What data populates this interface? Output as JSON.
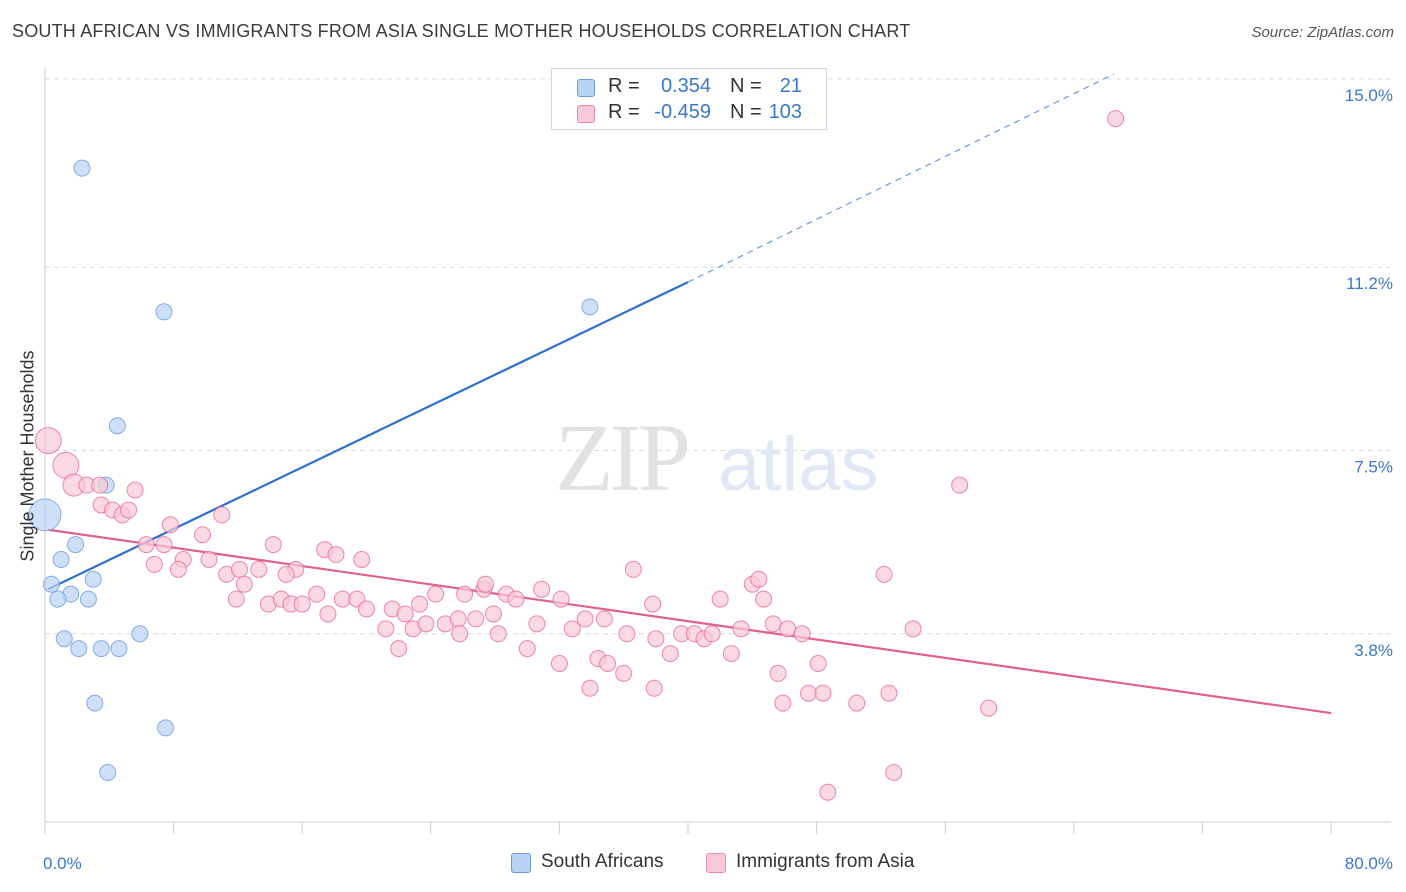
{
  "title": "SOUTH AFRICAN VS IMMIGRANTS FROM ASIA SINGLE MOTHER HOUSEHOLDS CORRELATION CHART",
  "source": "Source: ZipAtlas.com",
  "watermark": {
    "zip": "ZIP",
    "atlas": "atlas"
  },
  "legend": {
    "r_label": "R =",
    "n_label": "N =",
    "rows": [
      {
        "r": "0.354",
        "n": "21",
        "color": "#a9c8ef",
        "border": "#6a9be0"
      },
      {
        "r": "-0.459",
        "n": "103",
        "color": "#f8c0d0",
        "border": "#eb8ba8"
      }
    ]
  },
  "bottom_legend": [
    {
      "label": "South Africans",
      "color": "#b9d3f3",
      "border": "#6a9be0"
    },
    {
      "label": "Immigrants from Asia",
      "color": "#f8c9d6",
      "border": "#eb8ba8"
    }
  ],
  "chart_data": {
    "type": "scatter",
    "xlabel": "",
    "ylabel": "Single Mother Households",
    "xlim": [
      0,
      80
    ],
    "ylim": [
      0,
      15.0
    ],
    "x_tick_labels": [
      "0.0%",
      "80.0%"
    ],
    "y_ticks": [
      3.8,
      7.5,
      11.2,
      15.0
    ],
    "y_tick_labels": [
      "3.8%",
      "7.5%",
      "11.2%",
      "15.0%"
    ],
    "grid": true,
    "legend_position": "top-center",
    "series": [
      {
        "name": "South Africans",
        "color": "#6a9be0",
        "fill": "#b9d3f3",
        "points": [
          {
            "x": 2.3,
            "y": 13.2
          },
          {
            "x": 7.4,
            "y": 10.3
          },
          {
            "x": 4.5,
            "y": 8.0
          },
          {
            "x": 3.8,
            "y": 6.8
          },
          {
            "x": 0.0,
            "y": 6.2
          },
          {
            "x": 1.9,
            "y": 5.6
          },
          {
            "x": 1.0,
            "y": 5.3
          },
          {
            "x": 3.0,
            "y": 4.9
          },
          {
            "x": 0.4,
            "y": 4.8
          },
          {
            "x": 1.6,
            "y": 4.6
          },
          {
            "x": 0.8,
            "y": 4.5
          },
          {
            "x": 2.7,
            "y": 4.5
          },
          {
            "x": 1.2,
            "y": 3.7
          },
          {
            "x": 5.9,
            "y": 3.8
          },
          {
            "x": 2.1,
            "y": 3.5
          },
          {
            "x": 3.5,
            "y": 3.5
          },
          {
            "x": 4.6,
            "y": 3.5
          },
          {
            "x": 3.1,
            "y": 2.4
          },
          {
            "x": 7.5,
            "y": 1.9
          },
          {
            "x": 3.9,
            "y": 1.0
          },
          {
            "x": 33.9,
            "y": 10.4
          }
        ],
        "trend": {
          "x1": 0.2,
          "y1": 4.7,
          "x2": 40.0,
          "y2": 10.9,
          "ext_x2": 66.5,
          "ext_y2": 15.1
        }
      },
      {
        "name": "Immigrants from Asia",
        "color": "#e86a97",
        "fill": "#f8c9d6",
        "points": [
          {
            "x": 0.2,
            "y": 7.7
          },
          {
            "x": 1.3,
            "y": 7.2
          },
          {
            "x": 1.8,
            "y": 6.8
          },
          {
            "x": 2.6,
            "y": 6.8
          },
          {
            "x": 3.4,
            "y": 6.8
          },
          {
            "x": 3.5,
            "y": 6.4
          },
          {
            "x": 5.6,
            "y": 6.7
          },
          {
            "x": 4.2,
            "y": 6.3
          },
          {
            "x": 4.8,
            "y": 6.2
          },
          {
            "x": 5.2,
            "y": 6.3
          },
          {
            "x": 7.8,
            "y": 6.0
          },
          {
            "x": 11.0,
            "y": 6.2
          },
          {
            "x": 9.8,
            "y": 5.8
          },
          {
            "x": 6.3,
            "y": 5.6
          },
          {
            "x": 7.4,
            "y": 5.6
          },
          {
            "x": 8.6,
            "y": 5.3
          },
          {
            "x": 6.8,
            "y": 5.2
          },
          {
            "x": 8.3,
            "y": 5.1
          },
          {
            "x": 10.2,
            "y": 5.3
          },
          {
            "x": 11.3,
            "y": 5.0
          },
          {
            "x": 12.1,
            "y": 5.1
          },
          {
            "x": 13.3,
            "y": 5.1
          },
          {
            "x": 14.2,
            "y": 5.6
          },
          {
            "x": 15.6,
            "y": 5.1
          },
          {
            "x": 17.4,
            "y": 5.5
          },
          {
            "x": 18.1,
            "y": 5.4
          },
          {
            "x": 19.7,
            "y": 5.3
          },
          {
            "x": 12.4,
            "y": 4.8
          },
          {
            "x": 11.9,
            "y": 4.5
          },
          {
            "x": 13.9,
            "y": 4.4
          },
          {
            "x": 14.7,
            "y": 4.5
          },
          {
            "x": 15.3,
            "y": 4.4
          },
          {
            "x": 16.0,
            "y": 4.4
          },
          {
            "x": 16.9,
            "y": 4.6
          },
          {
            "x": 18.5,
            "y": 4.5
          },
          {
            "x": 19.4,
            "y": 4.5
          },
          {
            "x": 17.6,
            "y": 4.2
          },
          {
            "x": 20.0,
            "y": 4.3
          },
          {
            "x": 21.6,
            "y": 4.3
          },
          {
            "x": 22.4,
            "y": 4.2
          },
          {
            "x": 23.3,
            "y": 4.4
          },
          {
            "x": 24.3,
            "y": 4.6
          },
          {
            "x": 26.1,
            "y": 4.6
          },
          {
            "x": 27.3,
            "y": 4.7
          },
          {
            "x": 28.7,
            "y": 4.6
          },
          {
            "x": 29.3,
            "y": 4.5
          },
          {
            "x": 30.9,
            "y": 4.7
          },
          {
            "x": 32.1,
            "y": 4.5
          },
          {
            "x": 21.2,
            "y": 3.9
          },
          {
            "x": 22.9,
            "y": 3.9
          },
          {
            "x": 23.7,
            "y": 4.0
          },
          {
            "x": 24.9,
            "y": 4.0
          },
          {
            "x": 25.7,
            "y": 4.1
          },
          {
            "x": 26.8,
            "y": 4.1
          },
          {
            "x": 27.9,
            "y": 4.2
          },
          {
            "x": 28.2,
            "y": 3.8
          },
          {
            "x": 30.6,
            "y": 4.0
          },
          {
            "x": 32.8,
            "y": 3.9
          },
          {
            "x": 33.6,
            "y": 4.1
          },
          {
            "x": 34.8,
            "y": 4.1
          },
          {
            "x": 36.2,
            "y": 3.8
          },
          {
            "x": 37.8,
            "y": 4.4
          },
          {
            "x": 36.6,
            "y": 5.1
          },
          {
            "x": 36.0,
            "y": 3.0
          },
          {
            "x": 38.0,
            "y": 3.7
          },
          {
            "x": 38.9,
            "y": 3.4
          },
          {
            "x": 39.6,
            "y": 3.8
          },
          {
            "x": 40.4,
            "y": 3.8
          },
          {
            "x": 41.0,
            "y": 3.7
          },
          {
            "x": 42.0,
            "y": 4.5
          },
          {
            "x": 42.7,
            "y": 3.4
          },
          {
            "x": 43.3,
            "y": 3.9
          },
          {
            "x": 44.0,
            "y": 4.8
          },
          {
            "x": 44.7,
            "y": 4.5
          },
          {
            "x": 45.3,
            "y": 4.0
          },
          {
            "x": 46.2,
            "y": 3.9
          },
          {
            "x": 47.1,
            "y": 3.8
          },
          {
            "x": 48.1,
            "y": 3.2
          },
          {
            "x": 30.0,
            "y": 3.5
          },
          {
            "x": 32.0,
            "y": 3.2
          },
          {
            "x": 34.4,
            "y": 3.3
          },
          {
            "x": 35.0,
            "y": 3.2
          },
          {
            "x": 33.9,
            "y": 2.7
          },
          {
            "x": 37.9,
            "y": 2.7
          },
          {
            "x": 22.0,
            "y": 3.5
          },
          {
            "x": 25.8,
            "y": 3.8
          },
          {
            "x": 45.6,
            "y": 3.0
          },
          {
            "x": 45.9,
            "y": 2.4
          },
          {
            "x": 47.5,
            "y": 2.6
          },
          {
            "x": 48.4,
            "y": 2.6
          },
          {
            "x": 50.5,
            "y": 2.4
          },
          {
            "x": 52.5,
            "y": 2.6
          },
          {
            "x": 52.2,
            "y": 5.0
          },
          {
            "x": 54.0,
            "y": 3.9
          },
          {
            "x": 56.9,
            "y": 6.8
          },
          {
            "x": 58.7,
            "y": 2.3
          },
          {
            "x": 48.7,
            "y": 0.6
          },
          {
            "x": 52.8,
            "y": 1.0
          },
          {
            "x": 44.4,
            "y": 4.9
          },
          {
            "x": 41.5,
            "y": 3.8
          },
          {
            "x": 66.6,
            "y": 14.2
          },
          {
            "x": 27.4,
            "y": 4.8
          },
          {
            "x": 15.0,
            "y": 5.0
          }
        ],
        "trend": {
          "x1": 0.2,
          "y1": 5.9,
          "x2": 80.0,
          "y2": 2.2
        }
      }
    ]
  }
}
